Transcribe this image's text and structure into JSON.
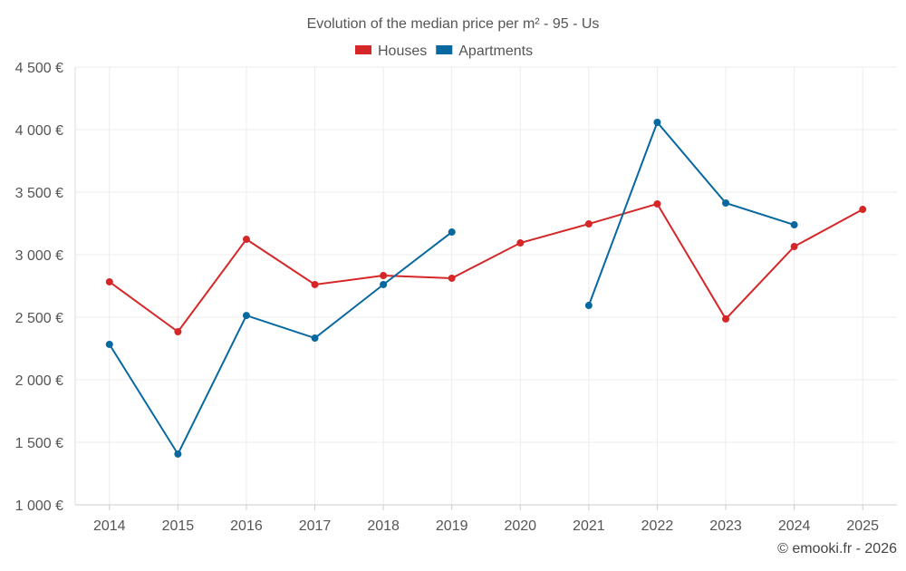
{
  "chart_data": {
    "type": "line",
    "title": "Evolution of the median price per m² - 95 - Us",
    "xlabel": "",
    "ylabel": "",
    "categories": [
      "2014",
      "2015",
      "2016",
      "2017",
      "2018",
      "2019",
      "2020",
      "2021",
      "2022",
      "2023",
      "2024",
      "2025"
    ],
    "ylim": [
      1000,
      4500
    ],
    "yticks": [
      1000,
      1500,
      2000,
      2500,
      3000,
      3500,
      4000,
      4500
    ],
    "ytick_labels": [
      "1 000 €",
      "1 500 €",
      "2 000 €",
      "2 500 €",
      "3 000 €",
      "3 500 €",
      "4 000 €",
      "4 500 €"
    ],
    "grid": true,
    "legend_position": "top-center",
    "series": [
      {
        "name": "Houses",
        "color": "#d62728",
        "values": [
          2783,
          2384,
          3123,
          2761,
          2833,
          2812,
          3094,
          3246,
          3406,
          2486,
          3065,
          3362
        ]
      },
      {
        "name": "Apartments",
        "color": "#0868a0",
        "values": [
          2283,
          1406,
          2514,
          2333,
          2761,
          3181,
          null,
          2594,
          4058,
          3413,
          3239,
          null
        ]
      }
    ],
    "credit": "© emooki.fr - 2026"
  }
}
